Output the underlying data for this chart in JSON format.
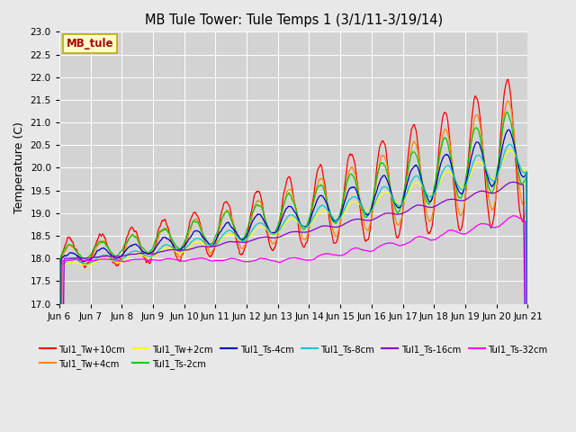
{
  "title": "MB Tule Tower: Tule Temps 1 (3/1/11-3/19/14)",
  "ylabel": "Temperature (C)",
  "ylim": [
    17.0,
    23.0
  ],
  "xlim": [
    0,
    15
  ],
  "bg_color": "#e8e8e8",
  "plot_bg": "#d3d3d3",
  "grid_color": "#ffffff",
  "annotation_text": "MB_tule",
  "annotation_fgcolor": "#aa0000",
  "annotation_bgcolor": "#ffffcc",
  "annotation_edgecolor": "#bbaa00",
  "x_tick_labels": [
    "Jun 6",
    "Jun 7",
    "Jun 8",
    "Jun 9",
    "Jun 10",
    "Jun 11",
    "Jun 12",
    "Jun 13",
    "Jun 14",
    "Jun 15",
    "Jun 16",
    "Jun 17",
    "Jun 18",
    "Jun 19",
    "Jun 20",
    "Jun 21"
  ],
  "series": [
    {
      "label": "Tul1_Tw+10cm",
      "color": "#ff0000"
    },
    {
      "label": "Tul1_Tw+4cm",
      "color": "#ff8800"
    },
    {
      "label": "Tul1_Tw+2cm",
      "color": "#ffff00"
    },
    {
      "label": "Tul1_Ts-2cm",
      "color": "#00cc00"
    },
    {
      "label": "Tul1_Ts-4cm",
      "color": "#0000cc"
    },
    {
      "label": "Tul1_Ts-8cm",
      "color": "#00cccc"
    },
    {
      "label": "Tul1_Ts-16cm",
      "color": "#8800cc"
    },
    {
      "label": "Tul1_Ts-32cm",
      "color": "#ff00ff"
    }
  ]
}
